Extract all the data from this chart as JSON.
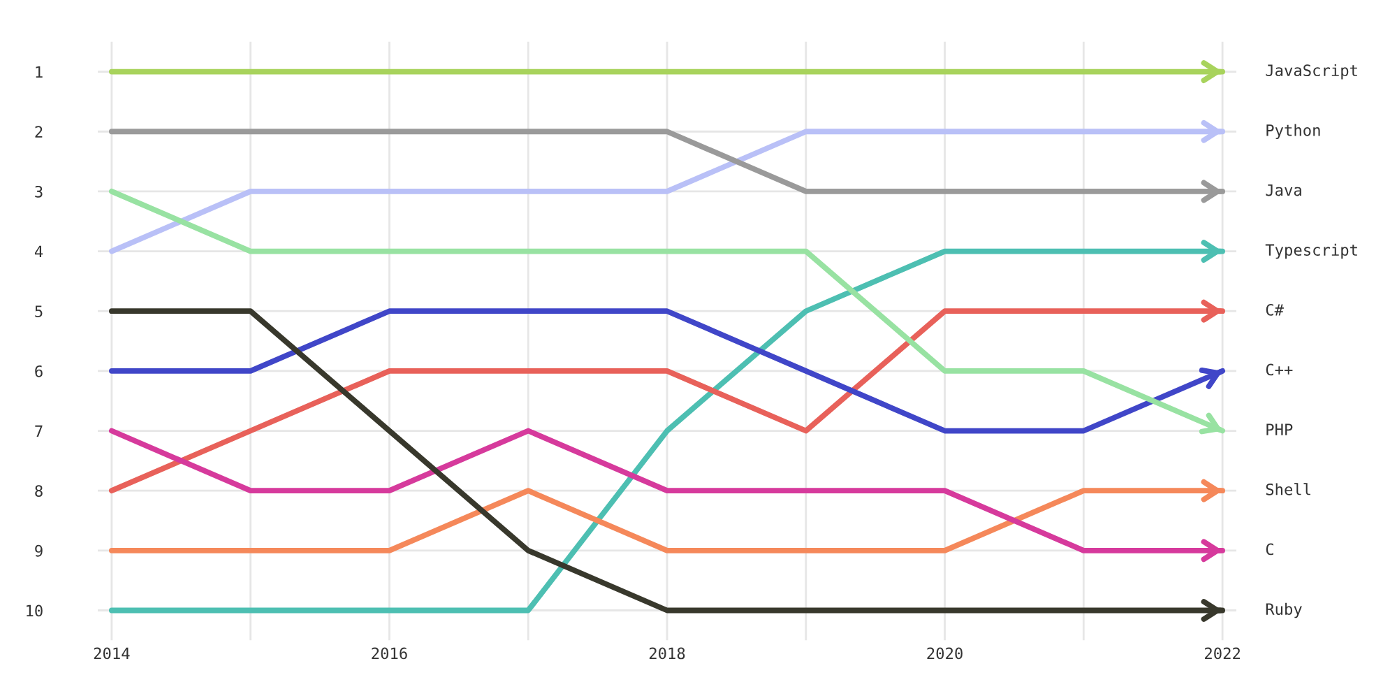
{
  "chart_data": {
    "type": "line",
    "x": [
      2014,
      2015,
      2016,
      2017,
      2018,
      2019,
      2020,
      2021,
      2022
    ],
    "ylim": [
      10.5,
      0.5
    ],
    "yticks": [
      1,
      2,
      3,
      4,
      5,
      6,
      7,
      8,
      9,
      10
    ],
    "xlim": [
      2013.9,
      2022.1
    ],
    "xticks": [
      2014,
      {
        "value": 2015,
        "label": null
      },
      2016,
      {
        "value": 2017,
        "label": null
      },
      2018,
      {
        "value": 2019,
        "label": null
      },
      2020,
      {
        "value": 2021,
        "label": null
      },
      2022
    ],
    "grid": true,
    "legend": false,
    "series": [
      {
        "name": "JavaScript",
        "color": "#a8d35c",
        "values": [
          1,
          1,
          1,
          1,
          1,
          1,
          1,
          1,
          1
        ]
      },
      {
        "name": "Python",
        "color": "#b9c0f7",
        "values": [
          4,
          3,
          3,
          3,
          3,
          2,
          2,
          2,
          2
        ]
      },
      {
        "name": "Java",
        "color": "#9a9a9a",
        "values": [
          2,
          2,
          2,
          2,
          2,
          3,
          3,
          3,
          3
        ]
      },
      {
        "name": "Typescript",
        "color": "#4dbfb2",
        "values": [
          10,
          10,
          10,
          10,
          7,
          5,
          4,
          4,
          4
        ]
      },
      {
        "name": "C#",
        "color": "#e8615a",
        "values": [
          8,
          7,
          6,
          6,
          6,
          7,
          5,
          5,
          5
        ]
      },
      {
        "name": "C++",
        "color": "#4046c8",
        "values": [
          6,
          6,
          5,
          5,
          5,
          6,
          7,
          7,
          6
        ]
      },
      {
        "name": "PHP",
        "color": "#98e2a2",
        "values": [
          3,
          4,
          4,
          4,
          4,
          4,
          6,
          6,
          7
        ]
      },
      {
        "name": "Shell",
        "color": "#f5885a",
        "values": [
          9,
          9,
          9,
          8,
          9,
          9,
          9,
          8,
          8
        ]
      },
      {
        "name": "C",
        "color": "#d63a9c",
        "values": [
          7,
          8,
          8,
          7,
          8,
          8,
          8,
          9,
          9
        ]
      },
      {
        "name": "Ruby",
        "color": "#38382c",
        "values": [
          5,
          5,
          7,
          9,
          10,
          10,
          10,
          10,
          10
        ]
      }
    ]
  }
}
